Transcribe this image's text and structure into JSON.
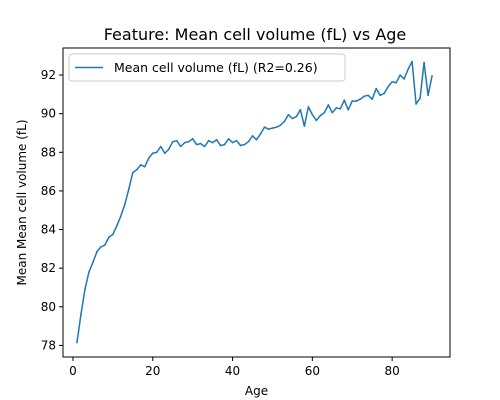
{
  "chart_data": {
    "type": "line",
    "title": "Feature: Mean cell volume (fL) vs Age",
    "xlabel": "Age",
    "ylabel": "Mean Mean cell volume (fL)",
    "xlim": [
      -2.5,
      94.5
    ],
    "ylim": [
      77.4,
      93.4
    ],
    "x_ticks": [
      0,
      20,
      40,
      60,
      80
    ],
    "y_ticks": [
      78,
      80,
      82,
      84,
      86,
      88,
      90,
      92
    ],
    "x_tick_labels": [
      "0",
      "20",
      "40",
      "60",
      "80"
    ],
    "y_tick_labels": [
      "78",
      "80",
      "82",
      "84",
      "86",
      "88",
      "90",
      "92"
    ],
    "grid": false,
    "legend_position": "upper-left",
    "series": [
      {
        "name": "Mean cell volume (fL) (R2=0.26)",
        "color": "#1f77b4",
        "x": [
          1,
          2,
          3,
          4,
          5,
          6,
          7,
          8,
          9,
          10,
          11,
          12,
          13,
          14,
          15,
          16,
          17,
          18,
          19,
          20,
          21,
          22,
          23,
          24,
          25,
          26,
          27,
          28,
          29,
          30,
          31,
          32,
          33,
          34,
          35,
          36,
          37,
          38,
          39,
          40,
          41,
          42,
          43,
          44,
          45,
          46,
          47,
          48,
          49,
          50,
          51,
          52,
          53,
          54,
          55,
          56,
          57,
          58,
          59,
          60,
          61,
          62,
          63,
          64,
          65,
          66,
          67,
          68,
          69,
          70,
          71,
          72,
          73,
          74,
          75,
          76,
          77,
          78,
          79,
          80,
          81,
          82,
          83,
          84,
          85,
          86,
          87,
          88,
          89,
          90
        ],
        "y": [
          78.15,
          79.6,
          80.9,
          81.8,
          82.3,
          82.85,
          83.1,
          83.2,
          83.6,
          83.75,
          84.2,
          84.7,
          85.3,
          86.1,
          86.95,
          87.1,
          87.35,
          87.25,
          87.7,
          87.95,
          88.0,
          88.3,
          87.95,
          88.15,
          88.55,
          88.6,
          88.3,
          88.5,
          88.55,
          88.7,
          88.4,
          88.45,
          88.3,
          88.6,
          88.5,
          88.65,
          88.35,
          88.4,
          88.7,
          88.5,
          88.6,
          88.35,
          88.4,
          88.55,
          88.85,
          88.65,
          88.95,
          89.3,
          89.2,
          89.25,
          89.3,
          89.4,
          89.6,
          89.95,
          89.75,
          89.85,
          90.2,
          89.35,
          90.35,
          89.95,
          89.65,
          89.9,
          90.05,
          90.45,
          90.05,
          90.3,
          90.25,
          90.7,
          90.2,
          90.65,
          90.65,
          90.75,
          90.9,
          90.95,
          90.75,
          91.3,
          90.95,
          91.05,
          91.4,
          91.65,
          91.6,
          92.0,
          91.8,
          92.3,
          92.7,
          90.5,
          90.8,
          92.65,
          90.95,
          91.95
        ]
      }
    ]
  }
}
